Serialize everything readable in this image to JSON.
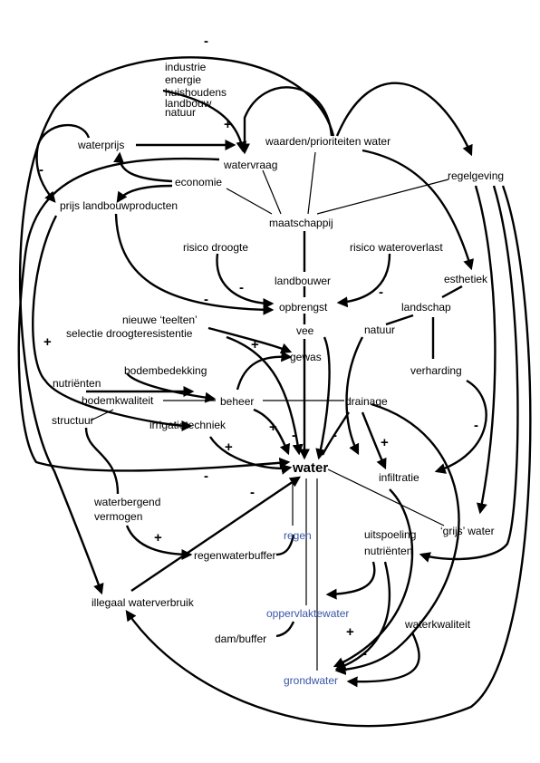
{
  "colors": {
    "ink": "#000000",
    "water_component": "#3a56a6",
    "background": "#ffffff"
  },
  "nodes": {
    "industrie": "industrie",
    "energie": "energie",
    "huishoudens": "huishoudens",
    "landbouw": "landbouw",
    "natuur_top": "natuur",
    "waarden": "waarden/prioriteiten water",
    "waterprijs": "waterprijs",
    "watervraag": "watervraag",
    "regelgeving": "regelgeving",
    "economie": "economie",
    "prijs_landbouw": "prijs landbouwproducten",
    "maatschappij": "maatschappij",
    "risico_droogte": "risico droogte",
    "risico_wateroverlast": "risico wateroverlast",
    "landbouwer": "landbouwer",
    "esthetiek": "esthetiek",
    "opbrengst": "opbrengst",
    "landschap": "landschap",
    "nieuwe_teelten": "nieuwe ‘teelten’",
    "selectie": "selectie droogteresistentie",
    "natuur": "natuur",
    "vee": "vee",
    "gewas": "gewas",
    "verharding": "verharding",
    "bodembedekking": "bodembedekking",
    "nutrienten": "nutriënten",
    "bodemkwaliteit": "bodemkwaliteit",
    "beheer": "beheer",
    "drainage": "drainage",
    "structuur": "structuur",
    "irrigatietechniek": "irrigatietechniek",
    "water": "water",
    "infiltratie": "infiltratie",
    "waterbergend": "waterbergend",
    "vermogen": "vermogen",
    "regen": "regen",
    "grijs_water": "‘grijs’ water",
    "uitspoeling": "uitspoeling",
    "nutrienten2": "nutriënten",
    "regenwaterbuffer": "regenwaterbuffer",
    "illegaal": "illegaal waterverbruik",
    "oppervlaktewater": "oppervlaktewater",
    "waterkwaliteit": "waterkwaliteit",
    "dam_buffer": "dam/buffer",
    "grondwater": "grondwater"
  },
  "signs": {
    "s_top": "-",
    "s_watervraag": "+",
    "s_waterprijs": "-",
    "s_plus_left": "+",
    "s_droogte": "-",
    "s_droogte2": "-",
    "s_overlast": "-",
    "s_teelten": "+",
    "s_beheer_water": "+",
    "s_beheer_water2": "-",
    "s_drainage_water": "-",
    "s_drainage_infil": "+",
    "s_verharding": "-",
    "s_irrigatie": "+",
    "s_left_water": "-",
    "s_illegaal": "-",
    "s_waterbergend": "+",
    "s_oppervlakte": "+",
    "s_grondwater": "-"
  }
}
